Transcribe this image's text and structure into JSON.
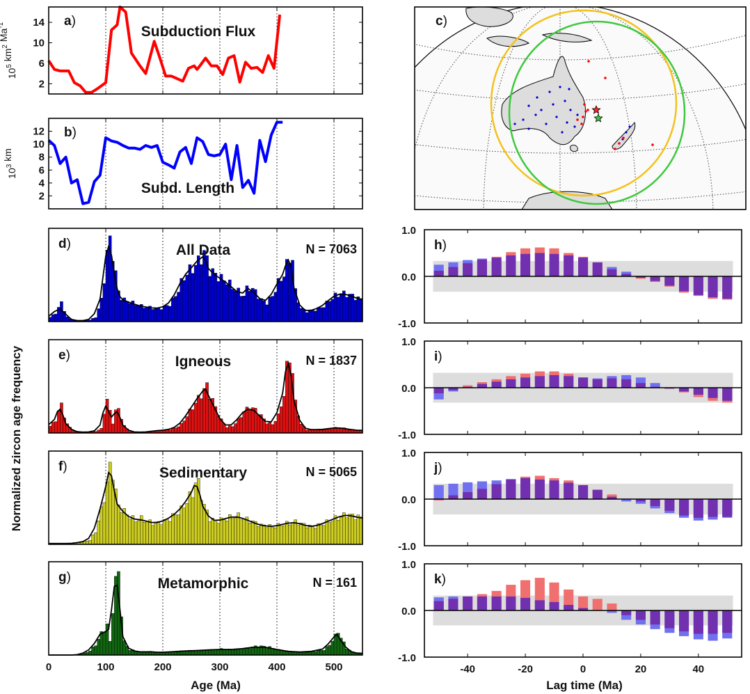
{
  "figure": {
    "shared_ylabel": "Normalized zircon age frequency",
    "age_xlabel": "Age (Ma)",
    "lag_xlabel": "Lag time (Ma)",
    "age_ticks": [
      "0",
      "100",
      "200",
      "300",
      "400",
      "500"
    ],
    "lag_ticks": [
      "-40",
      "-20",
      "0",
      "20",
      "40"
    ],
    "corr_yticks": [
      "1.0",
      "0.0",
      "-1.0"
    ]
  },
  "colors": {
    "flux": "#ff0000",
    "length": "#0000ff",
    "all": "#0000cc",
    "igneous": "#dd1111",
    "sedimentary": "#cccc22",
    "metamorphic": "#116611",
    "corr_red": "#f07070",
    "corr_blue": "#7070f0",
    "corr_overlap": "#7030b0",
    "sig_band": "#dddddd",
    "circle_yellow": "#f2c21b",
    "circle_green": "#3ec83e"
  },
  "map": {
    "label": "c",
    "icons": [
      "red-star-icon",
      "green-star-icon"
    ]
  },
  "chart_data": [
    {
      "id": "a",
      "label": "a",
      "type": "line",
      "title": "Subduction Flux",
      "ylabel_base": "10",
      "ylabel_exp": "5",
      "ylabel_unit": " km",
      "ylabel_exp2": "2",
      "ylabel_unit2": " Ma",
      "ylabel_exp3": "-1",
      "yticks": [
        "14",
        "10",
        "6",
        "2"
      ],
      "xlim": [
        0,
        550
      ],
      "ylim": [
        0,
        17
      ],
      "x": [
        0,
        10,
        20,
        35,
        45,
        55,
        65,
        75,
        85,
        100,
        110,
        120,
        125,
        135,
        145,
        160,
        170,
        185,
        195,
        205,
        215,
        225,
        235,
        245,
        255,
        260,
        265,
        275,
        285,
        295,
        305,
        315,
        325,
        335,
        345,
        355,
        365,
        375,
        385,
        395,
        405
      ],
      "y": [
        6.5,
        4.8,
        4.5,
        4.5,
        2.2,
        1.6,
        0.3,
        0.3,
        1.0,
        2.2,
        12.5,
        13.5,
        17.0,
        16.0,
        8.0,
        5.5,
        4.0,
        10.3,
        7.0,
        3.5,
        3.5,
        3.0,
        2.5,
        5.0,
        5.5,
        4.8,
        5.5,
        7.0,
        5.5,
        5.5,
        3.8,
        7.0,
        7.5,
        2.3,
        6.2,
        5.0,
        5.2,
        4.2,
        7.5,
        5.0,
        15.5
      ]
    },
    {
      "id": "b",
      "label": "b",
      "type": "line",
      "title": "Subd. Length",
      "ylabel_base": "10",
      "ylabel_exp": "3",
      "ylabel_unit": " km",
      "yticks": [
        "12",
        "10",
        "8",
        "6",
        "4",
        "2"
      ],
      "xlim": [
        0,
        550
      ],
      "ylim": [
        0,
        14
      ],
      "x": [
        0,
        10,
        20,
        30,
        40,
        50,
        60,
        70,
        80,
        90,
        100,
        110,
        120,
        130,
        140,
        150,
        160,
        170,
        180,
        190,
        200,
        210,
        220,
        230,
        240,
        250,
        260,
        270,
        280,
        290,
        300,
        310,
        320,
        330,
        340,
        350,
        360,
        370,
        380,
        390,
        400,
        410
      ],
      "y": [
        10.6,
        9.8,
        7.0,
        8.0,
        4.0,
        4.5,
        0.8,
        1.0,
        4.2,
        5.2,
        11.0,
        10.5,
        10.3,
        9.8,
        9.4,
        9.4,
        9.2,
        9.8,
        9.5,
        9.8,
        7.2,
        6.8,
        6.3,
        8.8,
        9.5,
        7.0,
        11.0,
        10.4,
        8.4,
        8.2,
        8.4,
        10.0,
        4.5,
        9.8,
        3.3,
        4.4,
        2.4,
        10.6,
        7.3,
        11.4,
        13.4,
        13.4
      ]
    },
    {
      "id": "d",
      "label": "d",
      "type": "bar",
      "title": "All Data",
      "ncount": "N = 7063",
      "xlim": [
        0,
        550
      ],
      "ylim": [
        0,
        1
      ],
      "x": [
        0,
        10,
        20,
        30,
        40,
        50,
        60,
        70,
        80,
        90,
        95,
        100,
        105,
        110,
        115,
        120,
        125,
        130,
        140,
        150,
        160,
        170,
        180,
        190,
        200,
        210,
        220,
        230,
        240,
        250,
        260,
        270,
        275,
        280,
        290,
        300,
        310,
        320,
        330,
        340,
        345,
        350,
        360,
        370,
        380,
        390,
        400,
        410,
        415,
        420,
        425,
        430,
        440,
        450,
        460,
        470,
        480,
        490,
        500,
        510,
        520,
        530,
        540,
        550
      ],
      "y": [
        0.05,
        0.1,
        0.22,
        0.05,
        0.02,
        0.01,
        0.01,
        0.02,
        0.05,
        0.25,
        0.5,
        0.8,
        0.95,
        0.8,
        0.55,
        0.35,
        0.28,
        0.25,
        0.23,
        0.2,
        0.18,
        0.17,
        0.16,
        0.15,
        0.17,
        0.2,
        0.3,
        0.45,
        0.57,
        0.62,
        0.7,
        0.8,
        0.72,
        0.6,
        0.55,
        0.5,
        0.47,
        0.4,
        0.35,
        0.3,
        0.38,
        0.4,
        0.35,
        0.25,
        0.22,
        0.3,
        0.45,
        0.55,
        0.65,
        0.75,
        0.72,
        0.35,
        0.15,
        0.12,
        0.13,
        0.15,
        0.18,
        0.25,
        0.3,
        0.33,
        0.32,
        0.3,
        0.27,
        0.25
      ]
    },
    {
      "id": "e",
      "label": "e",
      "type": "bar",
      "title": "Igneous",
      "ncount": "N = 1837",
      "xlim": [
        0,
        550
      ],
      "ylim": [
        0,
        1
      ],
      "x": [
        0,
        10,
        15,
        20,
        25,
        30,
        40,
        50,
        60,
        70,
        80,
        90,
        95,
        100,
        105,
        110,
        115,
        120,
        125,
        130,
        140,
        150,
        160,
        170,
        180,
        190,
        200,
        210,
        220,
        230,
        240,
        250,
        260,
        270,
        275,
        280,
        290,
        300,
        310,
        320,
        330,
        340,
        350,
        360,
        370,
        380,
        390,
        400,
        410,
        415,
        420,
        425,
        430,
        440,
        450,
        460,
        470,
        480,
        490,
        500,
        510,
        520,
        530,
        540,
        550
      ],
      "y": [
        0.08,
        0.15,
        0.25,
        0.33,
        0.2,
        0.1,
        0.03,
        0.01,
        0.01,
        0.01,
        0.02,
        0.05,
        0.25,
        0.38,
        0.25,
        0.12,
        0.25,
        0.28,
        0.18,
        0.08,
        0.02,
        0.01,
        0.01,
        0.01,
        0.02,
        0.03,
        0.03,
        0.04,
        0.06,
        0.1,
        0.2,
        0.3,
        0.4,
        0.5,
        0.55,
        0.45,
        0.3,
        0.15,
        0.07,
        0.08,
        0.15,
        0.25,
        0.3,
        0.27,
        0.2,
        0.12,
        0.1,
        0.2,
        0.45,
        0.75,
        0.9,
        0.7,
        0.35,
        0.1,
        0.04,
        0.04,
        0.04,
        0.04,
        0.05,
        0.06,
        0.06,
        0.05,
        0.04,
        0.03,
        0.03
      ]
    },
    {
      "id": "f",
      "label": "f",
      "type": "bar",
      "title": "Sedimentary",
      "ncount": "N = 5065",
      "xlim": [
        0,
        550
      ],
      "ylim": [
        0,
        1
      ],
      "x": [
        0,
        10,
        20,
        30,
        40,
        50,
        60,
        70,
        80,
        90,
        100,
        105,
        110,
        115,
        120,
        130,
        140,
        150,
        160,
        170,
        180,
        190,
        200,
        210,
        220,
        230,
        240,
        250,
        255,
        260,
        265,
        270,
        280,
        290,
        300,
        310,
        320,
        330,
        340,
        350,
        360,
        370,
        380,
        390,
        400,
        410,
        420,
        430,
        440,
        450,
        460,
        470,
        480,
        490,
        500,
        510,
        520,
        530,
        540,
        550
      ],
      "y": [
        0.01,
        0.01,
        0.01,
        0.01,
        0.01,
        0.02,
        0.03,
        0.05,
        0.15,
        0.4,
        0.7,
        0.9,
        0.85,
        0.6,
        0.45,
        0.38,
        0.32,
        0.28,
        0.3,
        0.27,
        0.25,
        0.25,
        0.27,
        0.3,
        0.35,
        0.4,
        0.5,
        0.6,
        0.72,
        0.7,
        0.58,
        0.45,
        0.3,
        0.27,
        0.28,
        0.3,
        0.32,
        0.33,
        0.3,
        0.28,
        0.25,
        0.22,
        0.22,
        0.2,
        0.22,
        0.23,
        0.25,
        0.26,
        0.24,
        0.22,
        0.2,
        0.22,
        0.24,
        0.27,
        0.3,
        0.32,
        0.35,
        0.33,
        0.32,
        0.3
      ]
    },
    {
      "id": "g",
      "label": "g",
      "type": "bar",
      "title": "Metamorphic",
      "ncount": "N = 161",
      "xlim": [
        0,
        550
      ],
      "ylim": [
        0,
        1
      ],
      "x": [
        0,
        10,
        20,
        30,
        40,
        50,
        60,
        70,
        80,
        90,
        100,
        105,
        110,
        115,
        120,
        125,
        130,
        140,
        150,
        160,
        170,
        180,
        190,
        200,
        220,
        240,
        260,
        280,
        300,
        320,
        340,
        360,
        380,
        400,
        420,
        440,
        460,
        480,
        490,
        500,
        505,
        510,
        520,
        530,
        540,
        550
      ],
      "y": [
        0,
        0,
        0,
        0,
        0,
        0,
        0.02,
        0.05,
        0.12,
        0.25,
        0.35,
        0.15,
        0.55,
        0.85,
        0.95,
        0.5,
        0.15,
        0.06,
        0.05,
        0.03,
        0.04,
        0.04,
        0.03,
        0.03,
        0.04,
        0.05,
        0.05,
        0.06,
        0.07,
        0.06,
        0.07,
        0.1,
        0.1,
        0.06,
        0.04,
        0.03,
        0.04,
        0.06,
        0.12,
        0.22,
        0.28,
        0.2,
        0.08,
        0.03,
        0.02,
        0.02
      ]
    },
    {
      "id": "h",
      "label": "h",
      "type": "bar",
      "xlim": [
        -55,
        55
      ],
      "ylim": [
        -1,
        1
      ],
      "sig": 0.33,
      "x": [
        -50,
        -45,
        -40,
        -35,
        -30,
        -25,
        -20,
        -15,
        -10,
        -5,
        0,
        5,
        10,
        15,
        20,
        25,
        30,
        35,
        40,
        45,
        50
      ],
      "series": [
        {
          "name": "red",
          "values": [
            0.12,
            0.2,
            0.28,
            0.36,
            0.42,
            0.52,
            0.6,
            0.62,
            0.6,
            0.5,
            0.42,
            0.3,
            0.15,
            0.05,
            -0.05,
            -0.12,
            -0.22,
            -0.35,
            -0.42,
            -0.48,
            -0.5
          ]
        },
        {
          "name": "blue",
          "values": [
            0.25,
            0.3,
            0.35,
            0.38,
            0.4,
            0.45,
            0.48,
            0.5,
            0.48,
            0.45,
            0.4,
            0.3,
            0.2,
            0.1,
            -0.03,
            -0.1,
            -0.2,
            -0.32,
            -0.4,
            -0.45,
            -0.48
          ]
        }
      ]
    },
    {
      "id": "i",
      "label": "i",
      "type": "bar",
      "xlim": [
        -55,
        55
      ],
      "ylim": [
        -1,
        1
      ],
      "sig": 0.32,
      "x": [
        -50,
        -45,
        -40,
        -35,
        -30,
        -25,
        -20,
        -15,
        -10,
        -5,
        0,
        5,
        10,
        15,
        20,
        25,
        30,
        35,
        40,
        45,
        50
      ],
      "series": [
        {
          "name": "red",
          "values": [
            -0.12,
            -0.05,
            0.05,
            0.12,
            0.18,
            0.25,
            0.3,
            0.35,
            0.35,
            0.3,
            0.22,
            0.18,
            0.2,
            0.18,
            0.1,
            0.02,
            -0.02,
            -0.1,
            -0.2,
            -0.28,
            -0.32
          ]
        },
        {
          "name": "blue",
          "values": [
            -0.25,
            -0.08,
            0.02,
            0.08,
            0.13,
            0.18,
            0.22,
            0.25,
            0.27,
            0.25,
            0.22,
            0.2,
            0.25,
            0.27,
            0.22,
            0.1,
            -0.02,
            -0.08,
            -0.15,
            -0.22,
            -0.28
          ]
        }
      ]
    },
    {
      "id": "j",
      "label": "j",
      "type": "bar",
      "xlim": [
        -55,
        55
      ],
      "ylim": [
        -1,
        1
      ],
      "sig": 0.33,
      "x": [
        -50,
        -45,
        -40,
        -35,
        -30,
        -25,
        -20,
        -15,
        -10,
        -5,
        0,
        5,
        10,
        15,
        20,
        25,
        30,
        35,
        40,
        45,
        50
      ],
      "series": [
        {
          "name": "red",
          "values": [
            -0.03,
            0.08,
            0.15,
            0.22,
            0.32,
            0.42,
            0.48,
            0.5,
            0.45,
            0.4,
            0.3,
            0.2,
            0.1,
            0.0,
            -0.05,
            -0.15,
            -0.25,
            -0.35,
            -0.4,
            -0.38,
            -0.38
          ]
        },
        {
          "name": "blue",
          "values": [
            0.3,
            0.33,
            0.36,
            0.38,
            0.4,
            0.43,
            0.45,
            0.42,
            0.4,
            0.35,
            0.3,
            0.2,
            0.05,
            -0.05,
            -0.1,
            -0.2,
            -0.3,
            -0.4,
            -0.46,
            -0.44,
            -0.4
          ]
        }
      ]
    },
    {
      "id": "k",
      "label": "k",
      "type": "bar",
      "xlim": [
        -55,
        55
      ],
      "ylim": [
        -1,
        1
      ],
      "sig": 0.32,
      "x": [
        -50,
        -45,
        -40,
        -35,
        -30,
        -25,
        -20,
        -15,
        -10,
        -5,
        0,
        5,
        10,
        15,
        20,
        25,
        30,
        35,
        40,
        45,
        50
      ],
      "series": [
        {
          "name": "red",
          "values": [
            0.2,
            0.25,
            0.3,
            0.35,
            0.42,
            0.55,
            0.65,
            0.7,
            0.6,
            0.45,
            0.3,
            0.25,
            0.15,
            -0.1,
            -0.2,
            -0.3,
            -0.38,
            -0.45,
            -0.5,
            -0.5,
            -0.48
          ]
        },
        {
          "name": "blue",
          "values": [
            0.28,
            0.3,
            0.3,
            0.3,
            0.3,
            0.3,
            0.27,
            0.22,
            0.18,
            0.12,
            0.05,
            0.0,
            -0.05,
            -0.2,
            -0.3,
            -0.4,
            -0.48,
            -0.55,
            -0.62,
            -0.65,
            -0.6
          ]
        }
      ]
    }
  ]
}
